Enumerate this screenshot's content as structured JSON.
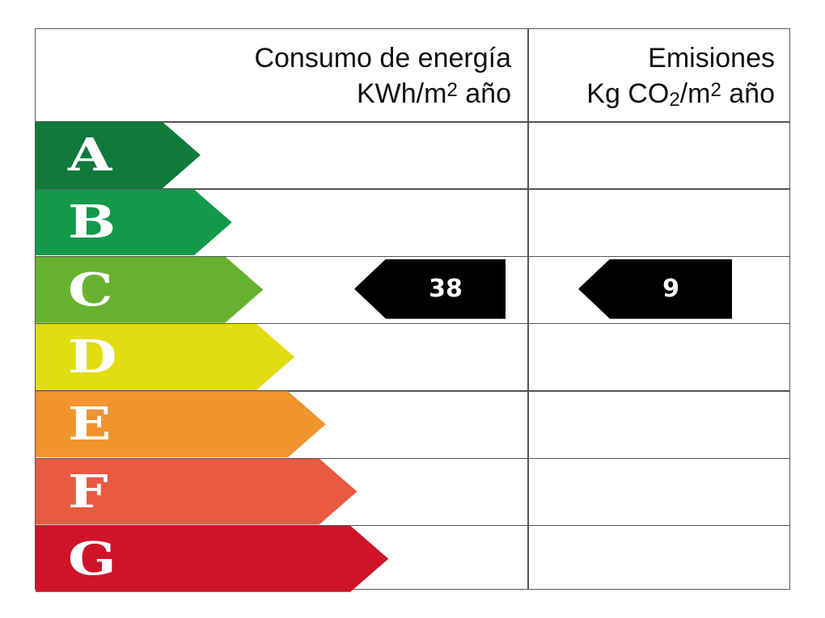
{
  "header": {
    "energy_line1": "Consumo de energía",
    "energy_line2_prefix": "KWh/m",
    "energy_line2_sup": "2",
    "energy_line2_suffix": " año",
    "emissions_line1": "Emisiones",
    "emissions_line2_prefix": "Kg CO",
    "emissions_line2_sub": "2",
    "emissions_line2_mid": "/m",
    "emissions_line2_sup": "2",
    "emissions_line2_suffix": " año"
  },
  "classes": [
    {
      "letter": "A",
      "color": "#0f7a3c"
    },
    {
      "letter": "B",
      "color": "#12994a"
    },
    {
      "letter": "C",
      "color": "#66b22e"
    },
    {
      "letter": "D",
      "color": "#e2dc12"
    },
    {
      "letter": "E",
      "color": "#f0942e"
    },
    {
      "letter": "F",
      "color": "#e85a42"
    },
    {
      "letter": "G",
      "color": "#cf1428"
    }
  ],
  "rating": {
    "class": "C",
    "energy_value": "38",
    "emissions_value": "9",
    "indicator_color": "#000000"
  }
}
